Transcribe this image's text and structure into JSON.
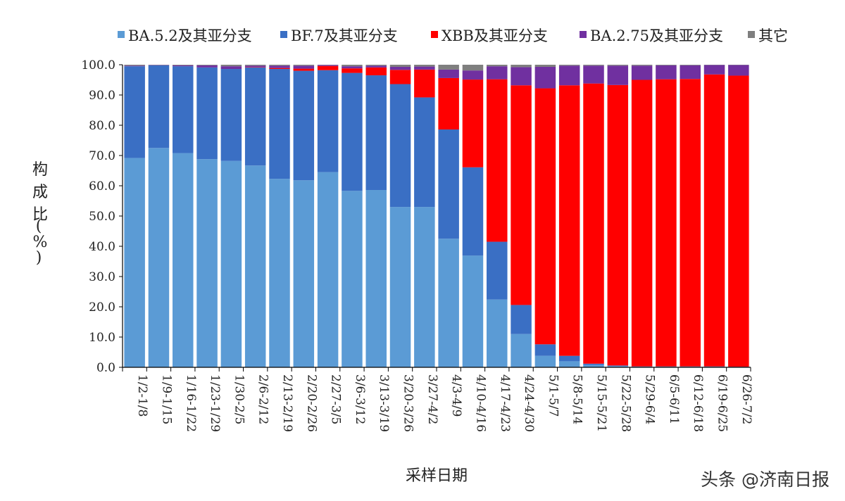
{
  "watermark": "头条 @济南日报",
  "colors": {
    "BA.5.2及其亚分支": "#5b9bd5",
    "BF.7及其亚分支": "#3a6fc4",
    "XBB及其亚分支": "#ff0000",
    "BA.2.75及其亚分支": "#7030a0",
    "其它": "#7f7f7f"
  },
  "chart_data": {
    "type": "bar",
    "stacked": true,
    "xlabel": "采样日期",
    "ylabel": "构成比（%）",
    "ylim": [
      0,
      100
    ],
    "yticks": [
      "0.0",
      "10.0",
      "20.0",
      "30.0",
      "40.0",
      "50.0",
      "60.0",
      "70.0",
      "80.0",
      "90.0",
      "100.0"
    ],
    "legend_position": "top",
    "grid": false,
    "categories": [
      "1/2-1/8",
      "1/9-1/15",
      "1/16-1/22",
      "1/23-1/29",
      "1/30-2/5",
      "2/6-2/12",
      "2/13-2/19",
      "2/20-2/26",
      "2/27-3/5",
      "3/6-3/12",
      "3/13-3/19",
      "3/20-3/26",
      "3/27-4/2",
      "4/3-4/9",
      "4/10-4/16",
      "4/17-4/23",
      "4/24-4/30",
      "5/1-5/7",
      "5/8-5/14",
      "5/15-5/21",
      "5/22-5/28",
      "5/29-6/4",
      "6/5-6/11",
      "6/12-6/18",
      "6/19-6/25",
      "6/26-7/2"
    ],
    "series": [
      {
        "name": "BA.5.2及其亚分支",
        "values": [
          69.2,
          72.5,
          70.8,
          68.8,
          68.2,
          66.7,
          62.3,
          61.8,
          64.5,
          58.3,
          58.6,
          53.0,
          53.0,
          42.5,
          36.9,
          22.4,
          11.0,
          3.8,
          2.0,
          0.8,
          0.4,
          0.2,
          0.2,
          0.2,
          0.2,
          0.1
        ]
      },
      {
        "name": "BF.7及其亚分支",
        "values": [
          30.3,
          27.3,
          28.7,
          30.3,
          30.4,
          32.4,
          36.3,
          36.2,
          33.7,
          39.0,
          37.9,
          40.6,
          36.2,
          36.1,
          29.2,
          19.1,
          9.6,
          3.8,
          1.8,
          0.4,
          0.2,
          0.1,
          0.1,
          0.1,
          0.1,
          0.1
        ]
      },
      {
        "name": "XBB及其亚分支",
        "values": [
          0.0,
          0.0,
          0.0,
          0.0,
          0.0,
          0.1,
          0.3,
          0.7,
          1.4,
          1.5,
          2.6,
          4.7,
          9.2,
          17.0,
          29.0,
          53.7,
          72.6,
          84.6,
          89.4,
          92.6,
          92.7,
          94.7,
          94.9,
          95.0,
          96.5,
          96.2
        ]
      },
      {
        "name": "BA.2.75及其亚分支",
        "values": [
          0.2,
          0.1,
          0.3,
          0.7,
          0.9,
          0.5,
          0.8,
          1.0,
          0.3,
          0.7,
          0.6,
          1.0,
          1.0,
          2.8,
          3.0,
          4.3,
          6.0,
          7.1,
          6.5,
          5.9,
          6.4,
          4.7,
          4.6,
          4.5,
          3.1,
          3.5
        ]
      },
      {
        "name": "其它",
        "values": [
          0.3,
          0.1,
          0.2,
          0.2,
          0.5,
          0.3,
          0.3,
          0.3,
          0.1,
          0.5,
          0.3,
          0.7,
          0.6,
          1.6,
          1.9,
          0.5,
          0.8,
          0.7,
          0.3,
          0.3,
          0.3,
          0.3,
          0.2,
          0.2,
          0.1,
          0.1
        ]
      }
    ]
  }
}
